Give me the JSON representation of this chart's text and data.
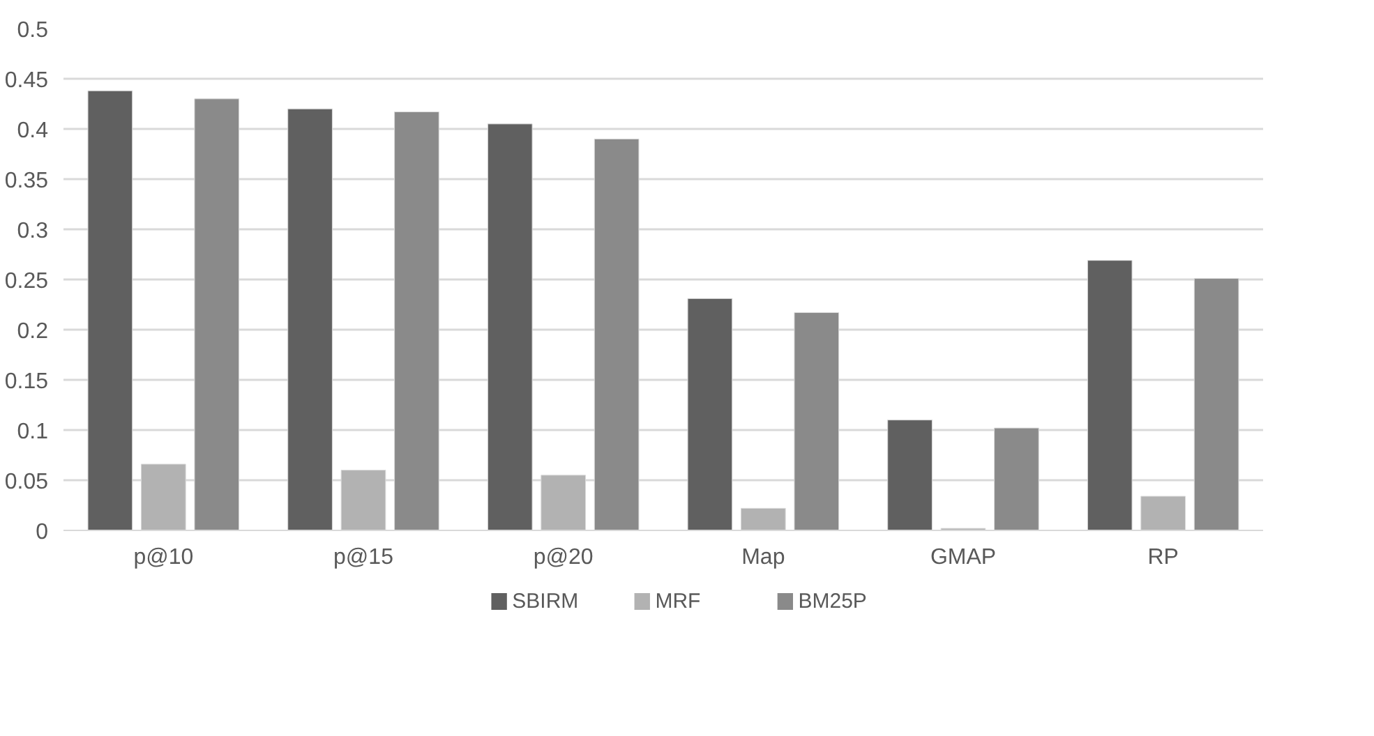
{
  "chart_data": {
    "type": "bar",
    "categories": [
      "p@10",
      "p@15",
      "p@20",
      "Map",
      "GMAP",
      "RP"
    ],
    "series": [
      {
        "name": "SBIRM",
        "color": "#606060",
        "values": [
          0.438,
          0.42,
          0.405,
          0.231,
          0.11,
          0.269
        ]
      },
      {
        "name": "MRF",
        "color": "#b2b2b2",
        "values": [
          0.066,
          0.06,
          0.055,
          0.022,
          0.002,
          0.034
        ]
      },
      {
        "name": "BM25P",
        "color": "#8a8a8a",
        "values": [
          0.43,
          0.417,
          0.39,
          0.217,
          0.102,
          0.251
        ]
      }
    ],
    "ylim": [
      0,
      0.5
    ],
    "yticks": [
      0,
      0.05,
      0.1,
      0.15,
      0.2,
      0.25,
      0.3,
      0.35,
      0.4,
      0.45,
      0.5
    ],
    "grid": "y",
    "legend": "bottom"
  }
}
